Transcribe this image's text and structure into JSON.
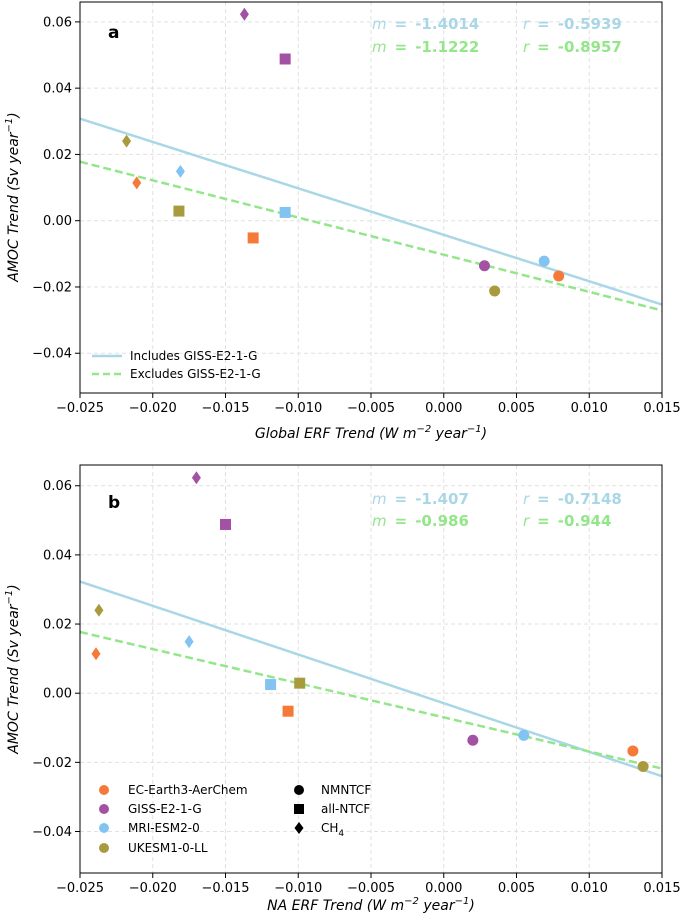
{
  "colors": {
    "EC-Earth3-AerChem": "#f57a3a",
    "GISS-E2-1-G": "#a352a3",
    "MRI-ESM2-0": "#82c3f2",
    "UKESM1-0-LL": "#aa9a3e",
    "includes_line": "#a9d7e6",
    "excludes_line": "#93e68a"
  },
  "chart_data": [
    {
      "type": "scatter",
      "panel": "a",
      "xlabel": "Global ERF Trend (W m$^{-2}$ year$^{-1}$)",
      "xlabel_parts": {
        "pre": "Global ERF Trend (W m",
        "sup1": "−2",
        "mid": " year",
        "sup2": "−1",
        "post": ")"
      },
      "ylabel": "AMOC Trend (Sv year$^{-1}$)",
      "ylabel_parts": {
        "pre": "AMOC Trend (Sv year",
        "sup": "−1",
        "post": ")"
      },
      "xlim": [
        -0.025,
        0.015
      ],
      "ylim": [
        -0.052,
        0.066
      ],
      "xticks": [
        "−0.025",
        "−0.020",
        "−0.015",
        "−0.010",
        "−0.005",
        "0.000",
        "0.005",
        "0.010",
        "0.015"
      ],
      "xtick_values": [
        -0.025,
        -0.02,
        -0.015,
        -0.01,
        -0.005,
        0.0,
        0.005,
        0.01,
        0.015
      ],
      "yticks": [
        "−0.04",
        "−0.02",
        "0.00",
        "0.02",
        "0.04",
        "0.06"
      ],
      "ytick_values": [
        -0.04,
        -0.02,
        0.0,
        0.02,
        0.04,
        0.06
      ],
      "grid": true,
      "stats": {
        "includes": {
          "m_label": "m",
          "eq": "=",
          "m": "-1.4014",
          "r_label": "r",
          "r": "-0.5939"
        },
        "excludes": {
          "m_label": "m",
          "eq": "=",
          "m": "-1.1222",
          "r_label": "r",
          "r": "-0.8957"
        }
      },
      "fit_lines": [
        {
          "name": "Includes GISS-E2-1-G",
          "style": "solid",
          "x": [
            -0.025,
            0.015
          ],
          "y": [
            0.0308,
            -0.0253
          ]
        },
        {
          "name": "Excludes GISS-E2-1-G",
          "style": "dashed",
          "x": [
            -0.025,
            0.015
          ],
          "y": [
            0.0178,
            -0.0271
          ]
        }
      ],
      "legend": {
        "placement": "lower-left",
        "entries": [
          "Includes GISS-E2-1-G",
          "Excludes GISS-E2-1-G"
        ]
      },
      "points": [
        {
          "model": "GISS-E2-1-G",
          "experiment": "CH4",
          "x": -0.0137,
          "y": 0.0623
        },
        {
          "model": "GISS-E2-1-G",
          "experiment": "all-NTCF",
          "x": -0.0109,
          "y": 0.0488
        },
        {
          "model": "UKESM1-0-LL",
          "experiment": "CH4",
          "x": -0.0218,
          "y": 0.024
        },
        {
          "model": "MRI-ESM2-0",
          "experiment": "CH4",
          "x": -0.0181,
          "y": 0.0149
        },
        {
          "model": "EC-Earth3-AerChem",
          "experiment": "CH4",
          "x": -0.0211,
          "y": 0.0114
        },
        {
          "model": "UKESM1-0-LL",
          "experiment": "all-NTCF",
          "x": -0.0182,
          "y": 0.0029
        },
        {
          "model": "MRI-ESM2-0",
          "experiment": "all-NTCF",
          "x": -0.0109,
          "y": 0.0025
        },
        {
          "model": "EC-Earth3-AerChem",
          "experiment": "all-NTCF",
          "x": -0.0131,
          "y": -0.0052
        },
        {
          "model": "MRI-ESM2-0",
          "experiment": "NMNTCF",
          "x": 0.0069,
          "y": -0.0122
        },
        {
          "model": "GISS-E2-1-G",
          "experiment": "NMNTCF",
          "x": 0.0028,
          "y": -0.0136
        },
        {
          "model": "EC-Earth3-AerChem",
          "experiment": "NMNTCF",
          "x": 0.0079,
          "y": -0.0167
        },
        {
          "model": "UKESM1-0-LL",
          "experiment": "NMNTCF",
          "x": 0.0035,
          "y": -0.0212
        }
      ]
    },
    {
      "type": "scatter",
      "panel": "b",
      "xlabel": "NA ERF Trend (W m$^{-2}$ year$^{-1}$)",
      "xlabel_parts": {
        "pre": "NA ERF Trend (W m",
        "sup1": "−2",
        "mid": " year",
        "sup2": "−1",
        "post": ")"
      },
      "ylabel": "AMOC Trend (Sv year$^{-1}$)",
      "ylabel_parts": {
        "pre": "AMOC Trend (Sv year",
        "sup": "−1",
        "post": ")"
      },
      "xlim": [
        -0.025,
        0.015
      ],
      "ylim": [
        -0.052,
        0.066
      ],
      "xticks": [
        "−0.025",
        "−0.020",
        "−0.015",
        "−0.010",
        "−0.005",
        "0.000",
        "0.005",
        "0.010",
        "0.015"
      ],
      "xtick_values": [
        -0.025,
        -0.02,
        -0.015,
        -0.01,
        -0.005,
        0.0,
        0.005,
        0.01,
        0.015
      ],
      "yticks": [
        "−0.04",
        "−0.02",
        "0.00",
        "0.02",
        "0.04",
        "0.06"
      ],
      "ytick_values": [
        -0.04,
        -0.02,
        0.0,
        0.02,
        0.04,
        0.06
      ],
      "grid": true,
      "stats": {
        "includes": {
          "m_label": "m",
          "eq": "=",
          "m": "-1.407",
          "r_label": "r",
          "r": "-0.7148"
        },
        "excludes": {
          "m_label": "m",
          "eq": "=",
          "m": "-0.986",
          "r_label": "r",
          "r": "-0.944"
        }
      },
      "fit_lines": [
        {
          "name": "Includes GISS-E2-1-G",
          "style": "solid",
          "x": [
            -0.025,
            0.015
          ],
          "y": [
            0.0323,
            -0.024
          ]
        },
        {
          "name": "Excludes GISS-E2-1-G",
          "style": "dashed",
          "x": [
            -0.025,
            0.015
          ],
          "y": [
            0.0177,
            -0.0218
          ]
        }
      ],
      "legend": {
        "placement": "lower-left",
        "models": [
          "EC-Earth3-AerChem",
          "GISS-E2-1-G",
          "MRI-ESM2-0",
          "UKESM1-0-LL"
        ],
        "experiments": [
          {
            "label": "NMNTCF",
            "marker": "circle"
          },
          {
            "label": "all-NTCF",
            "marker": "square"
          },
          {
            "label": "CH",
            "sub": "4",
            "marker": "diamond"
          }
        ]
      },
      "points": [
        {
          "model": "GISS-E2-1-G",
          "experiment": "CH4",
          "x": -0.017,
          "y": 0.0623
        },
        {
          "model": "GISS-E2-1-G",
          "experiment": "all-NTCF",
          "x": -0.015,
          "y": 0.0488
        },
        {
          "model": "UKESM1-0-LL",
          "experiment": "CH4",
          "x": -0.0237,
          "y": 0.024
        },
        {
          "model": "MRI-ESM2-0",
          "experiment": "CH4",
          "x": -0.0175,
          "y": 0.0149
        },
        {
          "model": "EC-Earth3-AerChem",
          "experiment": "CH4",
          "x": -0.0239,
          "y": 0.0114
        },
        {
          "model": "UKESM1-0-LL",
          "experiment": "all-NTCF",
          "x": -0.0099,
          "y": 0.0029
        },
        {
          "model": "MRI-ESM2-0",
          "experiment": "all-NTCF",
          "x": -0.0119,
          "y": 0.0025
        },
        {
          "model": "EC-Earth3-AerChem",
          "experiment": "all-NTCF",
          "x": -0.0107,
          "y": -0.0052
        },
        {
          "model": "MRI-ESM2-0",
          "experiment": "NMNTCF",
          "x": 0.0055,
          "y": -0.0122
        },
        {
          "model": "GISS-E2-1-G",
          "experiment": "NMNTCF",
          "x": 0.002,
          "y": -0.0136
        },
        {
          "model": "EC-Earth3-AerChem",
          "experiment": "NMNTCF",
          "x": 0.013,
          "y": -0.0167
        },
        {
          "model": "UKESM1-0-LL",
          "experiment": "NMNTCF",
          "x": 0.0137,
          "y": -0.0212
        }
      ]
    }
  ]
}
